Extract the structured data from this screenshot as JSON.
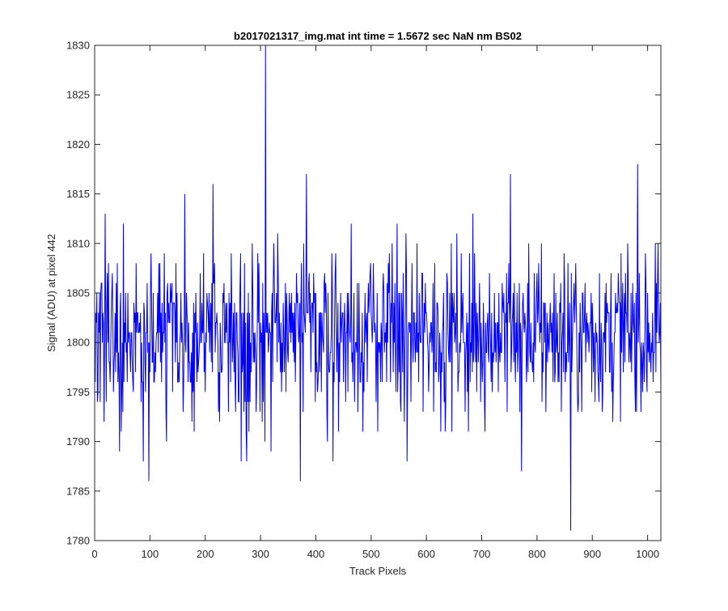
{
  "chart_data": {
    "type": "line",
    "title": "b2017021317_img.mat int time = 1.5672 sec  NaN nm BS02",
    "xlabel": "Track Pixels",
    "ylabel": "Signal (ADU) at pixel 442",
    "xlim": [
      0,
      1024
    ],
    "ylim": [
      1780,
      1830
    ],
    "x_ticks": [
      0,
      100,
      200,
      300,
      400,
      500,
      600,
      700,
      800,
      900,
      1000
    ],
    "y_ticks": [
      1780,
      1785,
      1790,
      1795,
      1800,
      1805,
      1810,
      1815,
      1820,
      1825,
      1830
    ],
    "grid": false,
    "line_color": "#0000ff",
    "series": [
      {
        "x_start": 1,
        "x_step": 1,
        "approximate_mean": 1801,
        "approximate_range": [
          1781,
          1830
        ],
        "notable_points": [
          {
            "x": 10,
            "y": 1794
          },
          {
            "x": 19,
            "y": 1813
          },
          {
            "x": 45,
            "y": 1789
          },
          {
            "x": 52,
            "y": 1812
          },
          {
            "x": 88,
            "y": 1788
          },
          {
            "x": 98,
            "y": 1786
          },
          {
            "x": 163,
            "y": 1815
          },
          {
            "x": 214,
            "y": 1816
          },
          {
            "x": 265,
            "y": 1788
          },
          {
            "x": 275,
            "y": 1788
          },
          {
            "x": 309,
            "y": 1830
          },
          {
            "x": 319,
            "y": 1789
          },
          {
            "x": 372,
            "y": 1786
          },
          {
            "x": 383,
            "y": 1817
          },
          {
            "x": 565,
            "y": 1788
          },
          {
            "x": 752,
            "y": 1817
          },
          {
            "x": 772,
            "y": 1787
          },
          {
            "x": 861,
            "y": 1781
          },
          {
            "x": 982,
            "y": 1818
          }
        ]
      }
    ]
  }
}
